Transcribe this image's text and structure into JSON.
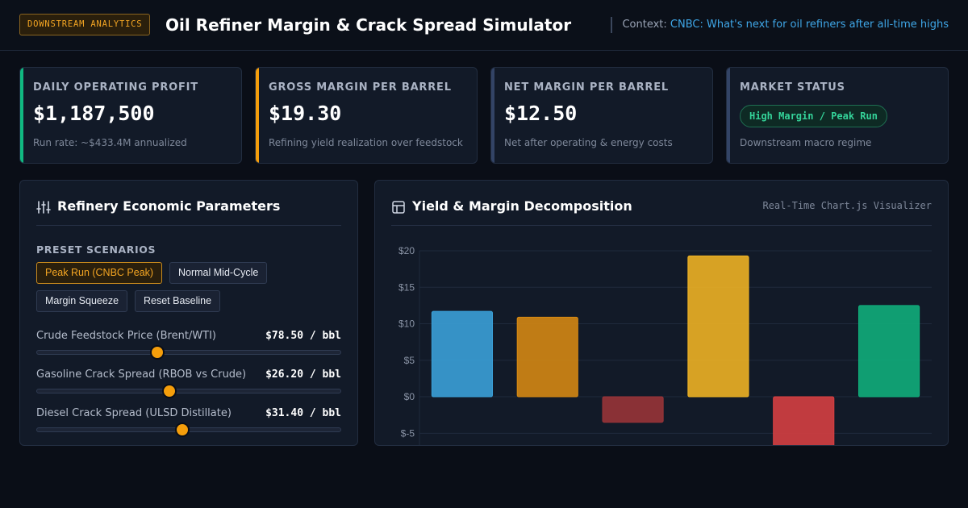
{
  "header": {
    "badge": "DOWNSTREAM ANALYTICS",
    "title": "Oil Refiner Margin & Crack Spread Simulator",
    "context_prefix": "Context:",
    "context_link": "CNBC: What's next for oil refiners after all-time highs"
  },
  "kpis": [
    {
      "label": "DAILY OPERATING PROFIT",
      "value": "$1,187,500",
      "sub": "Run rate: ~$433.4M annualized",
      "accent": "#10b981"
    },
    {
      "label": "GROSS MARGIN PER BARREL",
      "value": "$19.30",
      "sub": "Refining yield realization over feedstock",
      "accent": "#f59e0b"
    },
    {
      "label": "NET MARGIN PER BARREL",
      "value": "$12.50",
      "sub": "Net after operating & energy costs",
      "accent": "#334466"
    },
    {
      "label": "MARKET STATUS",
      "status": "High Margin / Peak Run",
      "sub": "Downstream macro regime",
      "accent": "#334466"
    }
  ],
  "params_panel": {
    "title": "Refinery Economic Parameters",
    "icon": "sliders-icon",
    "presets_label": "PRESET SCENARIOS",
    "presets": [
      "Peak Run (CNBC Peak)",
      "Normal Mid-Cycle",
      "Margin Squeeze",
      "Reset Baseline"
    ],
    "active_preset": 0,
    "sliders": [
      {
        "label": "Crude Feedstock Price (Brent/WTI)",
        "value": "$78.50 / bbl",
        "level": 0.395
      },
      {
        "label": "Gasoline Crack Spread (RBOB vs Crude)",
        "value": "$26.20 / bbl",
        "level": 0.437
      },
      {
        "label": "Diesel Crack Spread (ULSD Distillate)",
        "value": "$31.40 / bbl",
        "level": 0.48
      }
    ]
  },
  "chart_panel": {
    "title": "Yield & Margin Decomposition",
    "icon": "chart-layout-icon",
    "tag": "Real-Time Chart.js Visualizer"
  },
  "chart_data": {
    "type": "bar",
    "title": "",
    "xlabel": "",
    "ylabel": "",
    "ylim": [
      -8.5,
      20
    ],
    "y_ticks": [
      20,
      15,
      10,
      5,
      0,
      -5
    ],
    "tick_prefix": "$",
    "grid": true,
    "legend": "none",
    "values": [
      11.7,
      10.9,
      -3.5,
      19.3,
      -6.8,
      12.5
    ],
    "colors": [
      "#3ba3dc",
      "#d88a12",
      "#9b3438",
      "#f2b523",
      "#d94042",
      "#10b07c"
    ]
  }
}
